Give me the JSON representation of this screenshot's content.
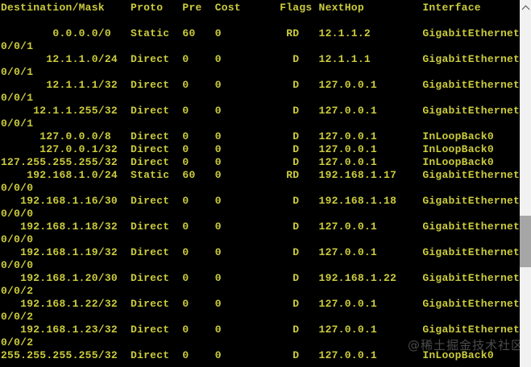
{
  "terminal": {
    "header_columns": [
      "Destination/Mask",
      "Proto",
      "Pre",
      "Cost",
      "Flags",
      "NextHop",
      "Interface"
    ],
    "routes": [
      {
        "destination": "0.0.0.0",
        "mask": "0",
        "proto": "Static",
        "pre": "60",
        "cost": "0",
        "flags": "RD",
        "nexthop": "12.1.1.2",
        "interface": "GigabitEthernet0/0/1"
      },
      {
        "destination": "12.1.1.0",
        "mask": "24",
        "proto": "Direct",
        "pre": "0",
        "cost": "0",
        "flags": "D",
        "nexthop": "12.1.1.1",
        "interface": "GigabitEthernet0/0/1"
      },
      {
        "destination": "12.1.1.1",
        "mask": "32",
        "proto": "Direct",
        "pre": "0",
        "cost": "0",
        "flags": "D",
        "nexthop": "127.0.0.1",
        "interface": "GigabitEthernet0/0/1"
      },
      {
        "destination": "12.1.1.255",
        "mask": "32",
        "proto": "Direct",
        "pre": "0",
        "cost": "0",
        "flags": "D",
        "nexthop": "127.0.0.1",
        "interface": "GigabitEthernet0/0/1"
      },
      {
        "destination": "127.0.0.0",
        "mask": "8",
        "proto": "Direct",
        "pre": "0",
        "cost": "0",
        "flags": "D",
        "nexthop": "127.0.0.1",
        "interface": "InLoopBack0"
      },
      {
        "destination": "127.0.0.1",
        "mask": "32",
        "proto": "Direct",
        "pre": "0",
        "cost": "0",
        "flags": "D",
        "nexthop": "127.0.0.1",
        "interface": "InLoopBack0"
      },
      {
        "destination": "127.255.255.255",
        "mask": "32",
        "proto": "Direct",
        "pre": "0",
        "cost": "0",
        "flags": "D",
        "nexthop": "127.0.0.1",
        "interface": "InLoopBack0"
      },
      {
        "destination": "192.168.1.0",
        "mask": "24",
        "proto": "Static",
        "pre": "60",
        "cost": "0",
        "flags": "RD",
        "nexthop": "192.168.1.17",
        "interface": "GigabitEthernet0/0/0"
      },
      {
        "destination": "192.168.1.16",
        "mask": "30",
        "proto": "Direct",
        "pre": "0",
        "cost": "0",
        "flags": "D",
        "nexthop": "192.168.1.18",
        "interface": "GigabitEthernet0/0/0"
      },
      {
        "destination": "192.168.1.18",
        "mask": "32",
        "proto": "Direct",
        "pre": "0",
        "cost": "0",
        "flags": "D",
        "nexthop": "127.0.0.1",
        "interface": "GigabitEthernet0/0/0"
      },
      {
        "destination": "192.168.1.19",
        "mask": "32",
        "proto": "Direct",
        "pre": "0",
        "cost": "0",
        "flags": "D",
        "nexthop": "127.0.0.1",
        "interface": "GigabitEthernet0/0/0"
      },
      {
        "destination": "192.168.1.20",
        "mask": "30",
        "proto": "Direct",
        "pre": "0",
        "cost": "0",
        "flags": "D",
        "nexthop": "192.168.1.22",
        "interface": "GigabitEthernet0/0/2"
      },
      {
        "destination": "192.168.1.22",
        "mask": "32",
        "proto": "Direct",
        "pre": "0",
        "cost": "0",
        "flags": "D",
        "nexthop": "127.0.0.1",
        "interface": "GigabitEthernet0/0/2"
      },
      {
        "destination": "192.168.1.23",
        "mask": "32",
        "proto": "Direct",
        "pre": "0",
        "cost": "0",
        "flags": "D",
        "nexthop": "127.0.0.1",
        "interface": "GigabitEthernet0/0/2"
      },
      {
        "destination": "255.255.255.255",
        "mask": "32",
        "proto": "Direct",
        "pre": "0",
        "cost": "0",
        "flags": "D",
        "nexthop": "127.0.0.1",
        "interface": "InLoopBack0"
      }
    ]
  },
  "watermark": {
    "text": "@稀土掘金技术社区"
  },
  "colors": {
    "background": "#000000",
    "text": "#cccc3d",
    "scrollbar_track": "#f1f1f1",
    "scrollbar_thumb": "#a6a6a6",
    "scrollbar_arrow": "#505050",
    "watermark": "rgba(165,165,165,0.45)"
  }
}
